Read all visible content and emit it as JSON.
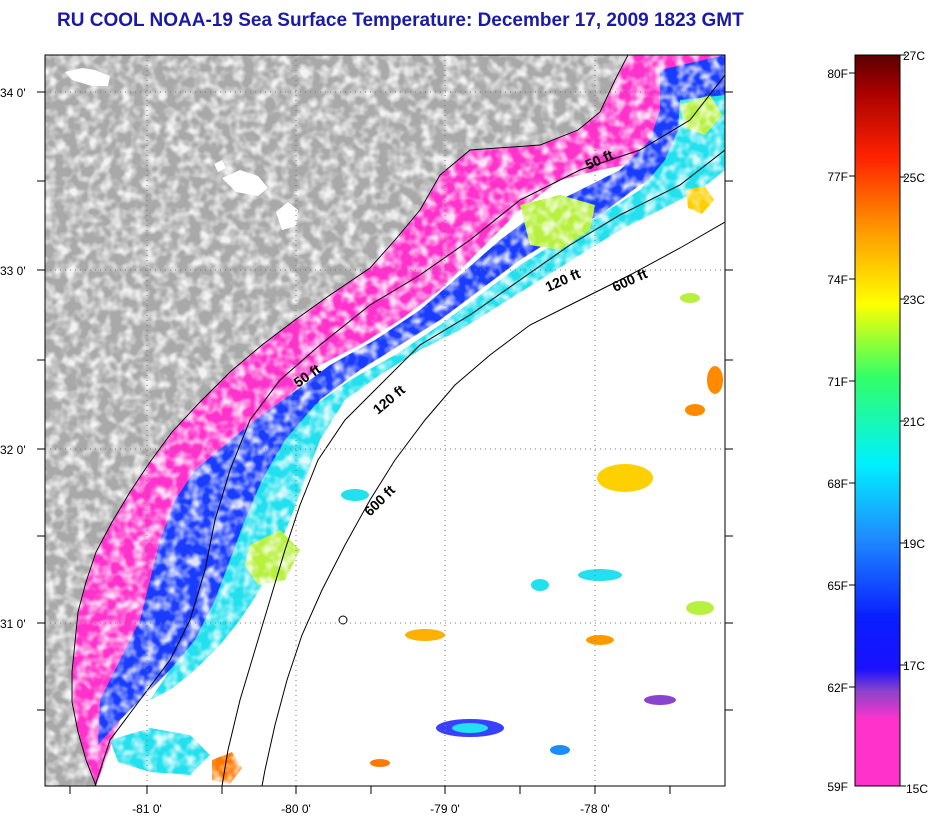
{
  "title": "RU COOL  NOAA-19  Sea Surface Temperature:  December 17, 2009 1823 GMT",
  "map": {
    "latitude_labels": [
      "34 0'",
      "33 0'",
      "32 0'",
      "31 0'"
    ],
    "longitude_labels": [
      "-81 0'",
      "-80 0'",
      "-79 0'",
      "-78 0'"
    ],
    "contour_labels": [
      "50 ft",
      "120 ft",
      "600 ft",
      "50 ft",
      "120 ft",
      "600 ft"
    ],
    "colors": {
      "land": "#a9a9a9",
      "cloud": "#ffffff",
      "cold": "#ff33cc",
      "cool": "#1a3cff",
      "mid": "#22e0ee",
      "warm": "#b8f040"
    }
  },
  "colorbar": {
    "fahrenheit_labels": [
      "80F",
      "77F",
      "74F",
      "71F",
      "68F",
      "65F",
      "62F",
      "59F"
    ],
    "celsius_labels": [
      "27C",
      "25C",
      "23C",
      "21C",
      "19C",
      "17C",
      "15C"
    ]
  }
}
